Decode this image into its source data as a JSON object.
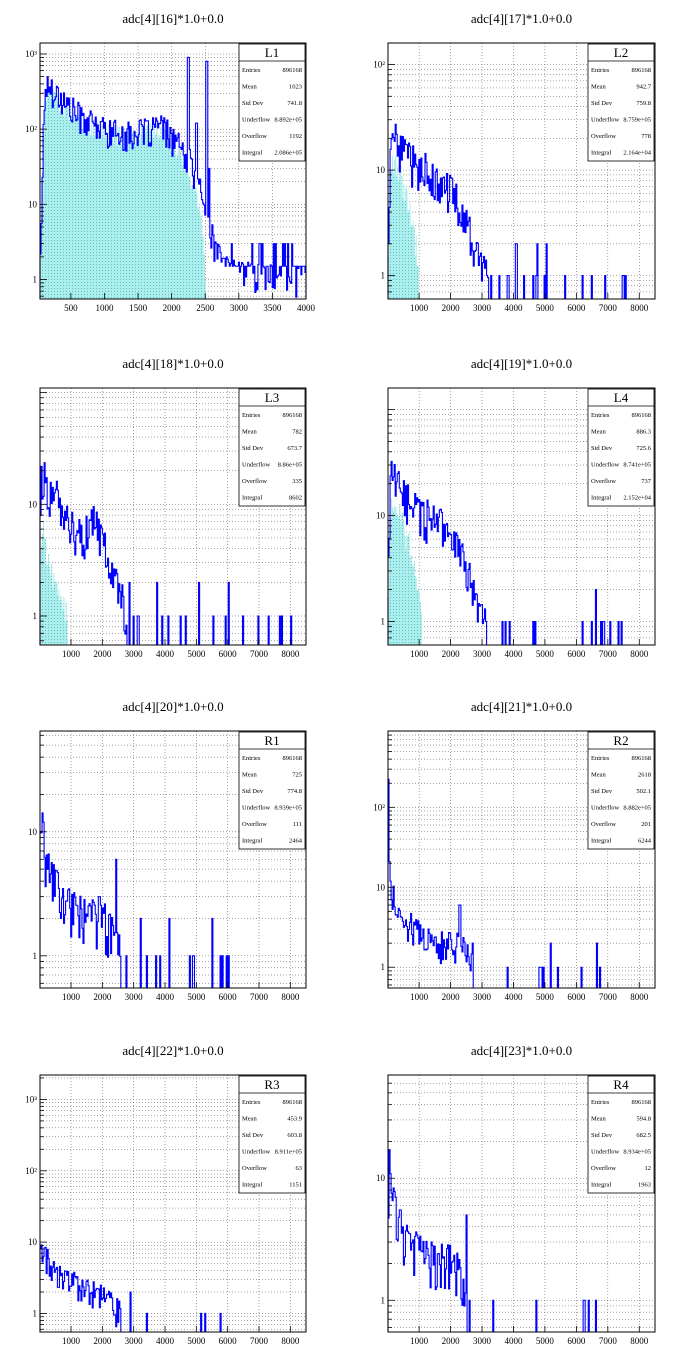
{
  "chart_data": [
    {
      "type": "histogram",
      "title": "adc[4][16]*1.0+0.0",
      "log_y": true,
      "xlim": [
        40,
        4000
      ],
      "ylim": [
        0.55,
        1400
      ],
      "xticks": [
        500,
        1000,
        1500,
        2000,
        2500,
        3000,
        3500,
        4000
      ],
      "yticks": [
        {
          "v": 1,
          "label": "1"
        },
        {
          "v": 10,
          "label": "10"
        },
        {
          "v": 100,
          "label": "10²"
        },
        {
          "v": 1000,
          "label": "10³"
        }
      ],
      "grid": true,
      "fill_color": "#aaeeee",
      "line_color": "#0000ff",
      "stats": {
        "title": "L1",
        "rows": [
          [
            "Entries",
            "896168"
          ],
          [
            "Mean",
            "1023"
          ],
          [
            "Std Dev",
            "741.8"
          ],
          [
            "Underflow",
            "8.892e+05"
          ],
          [
            "Overflow",
            "1192"
          ],
          [
            "Integral",
            "2.086e+05"
          ]
        ]
      },
      "envelope": [
        [
          40,
          2
        ],
        [
          70,
          8
        ],
        [
          95,
          120
        ],
        [
          110,
          280
        ],
        [
          130,
          360
        ],
        [
          180,
          380
        ],
        [
          260,
          330
        ],
        [
          380,
          240
        ],
        [
          500,
          190
        ],
        [
          650,
          150
        ],
        [
          800,
          120
        ],
        [
          1000,
          100
        ],
        [
          1200,
          90
        ],
        [
          1400,
          85
        ],
        [
          1600,
          95
        ],
        [
          1800,
          110
        ],
        [
          1900,
          100
        ],
        [
          2000,
          80
        ],
        [
          2100,
          65
        ],
        [
          2150,
          50
        ],
        [
          2200,
          40
        ],
        [
          2250,
          45
        ],
        [
          2300,
          30
        ],
        [
          2400,
          18
        ],
        [
          2500,
          9
        ],
        [
          2600,
          4
        ],
        [
          2700,
          2
        ],
        [
          2800,
          1.5
        ],
        [
          3000,
          1.2
        ],
        [
          4000,
          1
        ]
      ],
      "fill": [
        [
          40,
          1
        ],
        [
          100,
          200
        ],
        [
          130,
          320
        ],
        [
          200,
          330
        ],
        [
          400,
          200
        ],
        [
          600,
          140
        ],
        [
          800,
          110
        ],
        [
          1200,
          85
        ],
        [
          1600,
          90
        ],
        [
          1800,
          100
        ],
        [
          2000,
          70
        ],
        [
          2200,
          35
        ],
        [
          2350,
          15
        ],
        [
          2450,
          6
        ],
        [
          2500,
          1
        ]
      ],
      "spikes": [
        [
          2250,
          900
        ],
        [
          2520,
          800
        ],
        [
          2370,
          120
        ],
        [
          2560,
          30
        ]
      ],
      "noise_from": 2600,
      "noise_frac": 0.55,
      "noise_base": 1.5
    },
    {
      "type": "histogram",
      "title": "adc[4][17]*1.0+0.0",
      "log_y": true,
      "xlim": [
        10,
        8500
      ],
      "ylim": [
        0.6,
        160
      ],
      "xticks": [
        1000,
        2000,
        3000,
        4000,
        5000,
        6000,
        7000,
        8000
      ],
      "yticks": [
        {
          "v": 1,
          "label": "1"
        },
        {
          "v": 10,
          "label": "10"
        },
        {
          "v": 100,
          "label": "10²"
        }
      ],
      "grid": true,
      "fill_color": "#aaeeee",
      "line_color": "#0000ff",
      "stats": {
        "title": "L2",
        "rows": [
          [
            "Entries",
            "896168"
          ],
          [
            "Mean",
            "942.7"
          ],
          [
            "Std Dev",
            "759.8"
          ],
          [
            "Underflow",
            "8.759e+05"
          ],
          [
            "Overflow",
            "778"
          ],
          [
            "Integral",
            "2.164e+04"
          ]
        ]
      },
      "envelope": [
        [
          10,
          2
        ],
        [
          100,
          22
        ],
        [
          300,
          18
        ],
        [
          600,
          14
        ],
        [
          900,
          11
        ],
        [
          1200,
          10
        ],
        [
          1500,
          8
        ],
        [
          1800,
          7
        ],
        [
          2100,
          6
        ],
        [
          2400,
          4
        ],
        [
          2700,
          2
        ],
        [
          2900,
          1.5
        ],
        [
          3200,
          1
        ]
      ],
      "fill": [
        [
          10,
          1
        ],
        [
          100,
          15
        ],
        [
          400,
          9
        ],
        [
          700,
          4
        ],
        [
          900,
          2
        ],
        [
          1000,
          1
        ]
      ],
      "spikes": [],
      "noise_from": 2800,
      "noise_to": 7600,
      "noise_frac": 0.12,
      "noise_base": 1
    },
    {
      "type": "histogram",
      "title": "adc[4][18]*1.0+0.0",
      "log_y": true,
      "xlim": [
        10,
        8500
      ],
      "ylim": [
        0.55,
        110
      ],
      "xticks": [
        1000,
        2000,
        3000,
        4000,
        5000,
        6000,
        7000,
        8000
      ],
      "yticks": [
        {
          "v": 1,
          "label": "1"
        },
        {
          "v": 10,
          "label": "10"
        }
      ],
      "grid": true,
      "fill_color": "#aaeeee",
      "line_color": "#0000ff",
      "stats": {
        "title": "L3",
        "rows": [
          [
            "Entries",
            "896168"
          ],
          [
            "Mean",
            "782"
          ],
          [
            "Std Dev",
            "673.7"
          ],
          [
            "Underflow",
            "8.86e+05"
          ],
          [
            "Overflow",
            "335"
          ],
          [
            "Integral",
            "8602"
          ]
        ]
      },
      "envelope": [
        [
          10,
          3
        ],
        [
          60,
          20
        ],
        [
          200,
          15
        ],
        [
          500,
          12
        ],
        [
          800,
          8
        ],
        [
          1100,
          6
        ],
        [
          1400,
          5
        ],
        [
          1700,
          7
        ],
        [
          2000,
          5
        ],
        [
          2300,
          3
        ],
        [
          2600,
          1.5
        ],
        [
          2800,
          1
        ]
      ],
      "fill": [
        [
          10,
          1
        ],
        [
          80,
          7
        ],
        [
          300,
          3
        ],
        [
          600,
          1.5
        ],
        [
          900,
          1
        ]
      ],
      "spikes": [],
      "noise_from": 2700,
      "noise_to": 8200,
      "noise_frac": 0.1,
      "noise_base": 1
    },
    {
      "type": "histogram",
      "title": "adc[4][19]*1.0+0.0",
      "log_y": true,
      "xlim": [
        10,
        8500
      ],
      "ylim": [
        0.6,
        160
      ],
      "xticks": [
        1000,
        2000,
        3000,
        4000,
        5000,
        6000,
        7000,
        8000
      ],
      "yticks": [
        {
          "v": 1,
          "label": "1"
        },
        {
          "v": 10,
          "label": "10"
        }
      ],
      "grid": true,
      "fill_color": "#aaeeee",
      "line_color": "#0000ff",
      "stats": {
        "title": "L4",
        "rows": [
          [
            "Entries",
            "896168"
          ],
          [
            "Mean",
            "886.3"
          ],
          [
            "Std Dev",
            "725.6"
          ],
          [
            "Underflow",
            "8.741e+05"
          ],
          [
            "Overflow",
            "737"
          ],
          [
            "Integral",
            "2.152e+04"
          ]
        ]
      },
      "envelope": [
        [
          10,
          2
        ],
        [
          100,
          25
        ],
        [
          300,
          20
        ],
        [
          600,
          15
        ],
        [
          900,
          12
        ],
        [
          1200,
          10
        ],
        [
          1500,
          9
        ],
        [
          1800,
          8
        ],
        [
          2100,
          6
        ],
        [
          2400,
          4
        ],
        [
          2700,
          2
        ],
        [
          2900,
          1.3
        ],
        [
          3100,
          1
        ]
      ],
      "fill": [
        [
          10,
          1
        ],
        [
          100,
          14
        ],
        [
          400,
          10
        ],
        [
          700,
          5
        ],
        [
          950,
          2
        ],
        [
          1100,
          1
        ]
      ],
      "spikes": [],
      "noise_from": 2800,
      "noise_to": 7500,
      "noise_frac": 0.14,
      "noise_base": 1
    },
    {
      "type": "histogram",
      "title": "adc[4][20]*1.0+0.0",
      "log_y": true,
      "xlim": [
        10,
        8500
      ],
      "ylim": [
        0.55,
        65
      ],
      "xticks": [
        1000,
        2000,
        3000,
        4000,
        5000,
        6000,
        7000,
        8000
      ],
      "yticks": [
        {
          "v": 1,
          "label": "1"
        },
        {
          "v": 10,
          "label": "10"
        }
      ],
      "grid": true,
      "fill_color": "#aaeeee",
      "line_color": "#0000ff",
      "stats": {
        "title": "R1",
        "rows": [
          [
            "Entries",
            "896168"
          ],
          [
            "Mean",
            "725"
          ],
          [
            "Std Dev",
            "774.8"
          ],
          [
            "Underflow",
            "8.939e+05"
          ],
          [
            "Overflow",
            "111"
          ],
          [
            "Integral",
            "2464"
          ]
        ]
      },
      "envelope": [
        [
          10,
          4
        ],
        [
          40,
          16
        ],
        [
          150,
          7
        ],
        [
          400,
          4
        ],
        [
          700,
          3
        ],
        [
          1000,
          2.5
        ],
        [
          1500,
          2
        ],
        [
          2000,
          2
        ],
        [
          2300,
          1.5
        ],
        [
          2600,
          1
        ]
      ],
      "fill": [],
      "spikes": [
        [
          2450,
          6
        ],
        [
          1900,
          3
        ]
      ],
      "noise_from": 2600,
      "noise_to": 6300,
      "noise_frac": 0.1,
      "noise_base": 1
    },
    {
      "type": "histogram",
      "title": "adc[4][21]*1.0+0.0",
      "log_y": true,
      "xlim": [
        10,
        8500
      ],
      "ylim": [
        0.55,
        900
      ],
      "xticks": [
        1000,
        2000,
        3000,
        4000,
        5000,
        6000,
        7000,
        8000
      ],
      "yticks": [
        {
          "v": 1,
          "label": "1"
        },
        {
          "v": 10,
          "label": "10"
        },
        {
          "v": 100,
          "label": "10²"
        }
      ],
      "grid": true,
      "fill_color": "#aaeeee",
      "line_color": "#0000ff",
      "stats": {
        "title": "R2",
        "rows": [
          [
            "Entries",
            "896168"
          ],
          [
            "Mean",
            "2618"
          ],
          [
            "Std Dev",
            "502.1"
          ],
          [
            "Underflow",
            "8.882e+05"
          ],
          [
            "Overflow",
            "201"
          ],
          [
            "Integral",
            "6244"
          ]
        ]
      },
      "envelope": [
        [
          10,
          3
        ],
        [
          30,
          550
        ],
        [
          60,
          15
        ],
        [
          200,
          7
        ],
        [
          500,
          4
        ],
        [
          900,
          3
        ],
        [
          1300,
          2
        ],
        [
          1800,
          2
        ],
        [
          2200,
          2
        ],
        [
          2500,
          1.5
        ],
        [
          2700,
          1
        ]
      ],
      "fill": [],
      "spikes": [
        [
          2300,
          6
        ],
        [
          1300,
          3
        ]
      ],
      "noise_from": 2700,
      "noise_to": 7500,
      "noise_frac": 0.08,
      "noise_base": 1
    },
    {
      "type": "histogram",
      "title": "adc[4][22]*1.0+0.0",
      "log_y": true,
      "xlim": [
        10,
        8500
      ],
      "ylim": [
        0.55,
        2200
      ],
      "xticks": [
        1000,
        2000,
        3000,
        4000,
        5000,
        6000,
        7000,
        8000
      ],
      "yticks": [
        {
          "v": 1,
          "label": "1"
        },
        {
          "v": 10,
          "label": "10"
        },
        {
          "v": 100,
          "label": "10²"
        },
        {
          "v": 1000,
          "label": "10³"
        }
      ],
      "grid": true,
      "fill_color": "#aaeeee",
      "line_color": "#0000ff",
      "stats": {
        "title": "R3",
        "rows": [
          [
            "Entries",
            "896168"
          ],
          [
            "Mean",
            "453.9"
          ],
          [
            "Std Dev",
            "603.8"
          ],
          [
            "Underflow",
            "8.911e+05"
          ],
          [
            "Overflow",
            "63"
          ],
          [
            "Integral",
            "1151"
          ]
        ]
      },
      "envelope": [
        [
          10,
          2
        ],
        [
          30,
          12
        ],
        [
          150,
          7
        ],
        [
          400,
          4
        ],
        [
          800,
          3
        ],
        [
          1200,
          2.5
        ],
        [
          1700,
          2
        ],
        [
          2200,
          1.5
        ],
        [
          2600,
          1
        ]
      ],
      "fill": [],
      "spikes": [],
      "noise_from": 2700,
      "noise_to": 6400,
      "noise_frac": 0.05,
      "noise_base": 1
    },
    {
      "type": "histogram",
      "title": "adc[4][23]*1.0+0.0",
      "log_y": true,
      "xlim": [
        10,
        8500
      ],
      "ylim": [
        0.55,
        70
      ],
      "xticks": [
        1000,
        2000,
        3000,
        4000,
        5000,
        6000,
        7000,
        8000
      ],
      "yticks": [
        {
          "v": 1,
          "label": "1"
        },
        {
          "v": 10,
          "label": "10"
        }
      ],
      "grid": true,
      "fill_color": "#aaeeee",
      "line_color": "#0000ff",
      "stats": {
        "title": "R4",
        "rows": [
          [
            "Entries",
            "896168"
          ],
          [
            "Mean",
            "594.8"
          ],
          [
            "Std Dev",
            "682.5"
          ],
          [
            "Underflow",
            "8.934e+05"
          ],
          [
            "Overflow",
            "12"
          ],
          [
            "Integral",
            "1963"
          ]
        ]
      },
      "envelope": [
        [
          10,
          2
        ],
        [
          40,
          14
        ],
        [
          120,
          8
        ],
        [
          300,
          5
        ],
        [
          600,
          3
        ],
        [
          1000,
          2.5
        ],
        [
          1500,
          2
        ],
        [
          2000,
          2
        ],
        [
          2400,
          1.5
        ],
        [
          2500,
          1
        ]
      ],
      "fill": [],
      "spikes": [
        [
          2500,
          5
        ],
        [
          1400,
          3
        ]
      ],
      "noise_from": 2600,
      "noise_to": 7000,
      "noise_frac": 0.04,
      "noise_base": 1
    }
  ]
}
